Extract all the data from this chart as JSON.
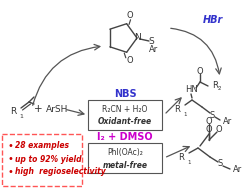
{
  "bg_color": "#ffffff",
  "arrow_color": "#555555",
  "blue_color": "#3333cc",
  "magenta_color": "#cc00cc",
  "red_color": "#cc0000",
  "box_border_color": "#ff5555",
  "bullet_points": [
    "28 examples",
    "up to 92% yield",
    "high  regioselectivity"
  ],
  "nbs_label": "NBS",
  "oxidant_free_line1": "R₂CN + H₂O",
  "oxidant_free_line2": "Oxidant-free",
  "i2_label": "I₂ + DMSO",
  "metal_free_line1": "PhI(OAc)₂",
  "metal_free_line2": "metal-free",
  "hbr_label": "HBr"
}
